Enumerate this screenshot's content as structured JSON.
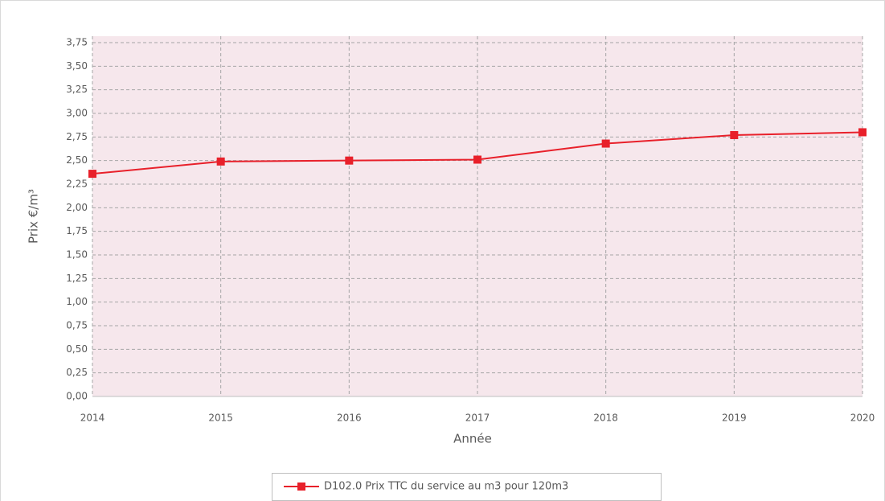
{
  "chart_data": {
    "type": "line",
    "x": [
      2014,
      2015,
      2016,
      2017,
      2018,
      2019,
      2020
    ],
    "series": [
      {
        "name": "D102.0 Prix TTC du service au m3 pour 120m3",
        "color": "#e8202a",
        "values": [
          2.36,
          2.49,
          2.5,
          2.51,
          2.68,
          2.77,
          2.8
        ]
      }
    ],
    "xlabel": "Année",
    "ylabel": "Prix €/m³",
    "xlim": [
      2014,
      2020
    ],
    "xticks": [
      2014,
      2015,
      2016,
      2017,
      2018,
      2019,
      2020
    ],
    "ylim": [
      0,
      3.75
    ],
    "yticks": [
      {
        "value": 0,
        "label": "0,00"
      },
      {
        "value": 0.25,
        "label": "0,25"
      },
      {
        "value": 0.5,
        "label": "0,50"
      },
      {
        "value": 0.75,
        "label": "0,75"
      },
      {
        "value": 1,
        "label": "1,00"
      },
      {
        "value": 1.25,
        "label": "1,25"
      },
      {
        "value": 1.5,
        "label": "1,50"
      },
      {
        "value": 1.75,
        "label": "1,75"
      },
      {
        "value": 2,
        "label": "2,00"
      },
      {
        "value": 2.25,
        "label": "2,25"
      },
      {
        "value": 2.5,
        "label": "2,50"
      },
      {
        "value": 2.75,
        "label": "2,75"
      },
      {
        "value": 3,
        "label": "3,00"
      },
      {
        "value": 3.25,
        "label": "3,25"
      },
      {
        "value": 3.5,
        "label": "3,50"
      },
      {
        "value": 3.75,
        "label": "3,75"
      }
    ],
    "grid": true,
    "legend": "bottom"
  }
}
